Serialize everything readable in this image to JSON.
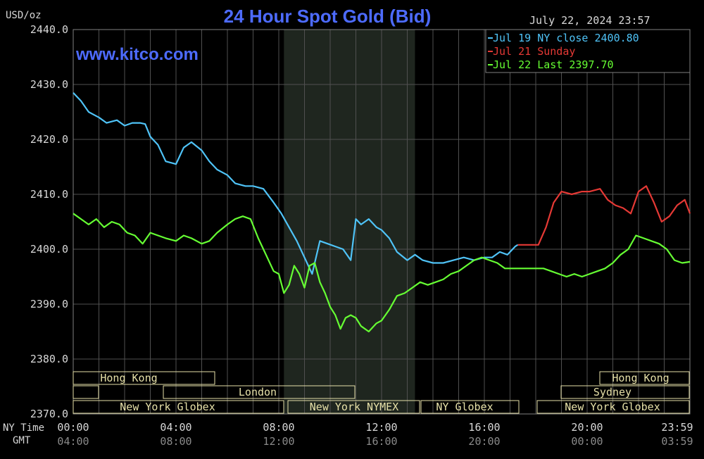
{
  "header": {
    "unit_label": "USD/oz",
    "title": "24 Hour Spot Gold (Bid)",
    "datetime": "July 22, 2024 23:57",
    "watermark": "www.kitco.com"
  },
  "legend": [
    {
      "label": "Jul 19 NY close 2400.80",
      "color": "#4fc3f7"
    },
    {
      "label": "Jul 21 Sunday",
      "color": "#e53935"
    },
    {
      "label": "Jul 22 Last 2397.70",
      "color": "#66ff33"
    }
  ],
  "axis_rows": {
    "ny_label": "NY Time",
    "gmt_label": "GMT",
    "ny_ticks": [
      "00:00",
      "04:00",
      "08:00",
      "12:00",
      "16:00",
      "20:00",
      "23:59"
    ],
    "gmt_ticks": [
      "04:00",
      "08:00",
      "12:00",
      "16:00",
      "20:00",
      "00:00",
      "03:59"
    ]
  },
  "sessions": {
    "hong_kong_1": "Hong Kong",
    "london": "London",
    "ny_globex_1": "New York Globex",
    "ny_nymex": "New York NYMEX",
    "ny_globex_2": "NY Globex",
    "hong_kong_2": "Hong Kong",
    "sydney": "Sydney",
    "ny_globex_3": "New York Globex"
  },
  "colors": {
    "background": "#000000",
    "plot": "#000000",
    "grid": "#505050",
    "shade": "#1f261f",
    "axis_text": "#d8d8d8",
    "title": "#4d6bff",
    "session_box": "#e6e0a8"
  },
  "chart_data": {
    "type": "line",
    "title": "24 Hour Spot Gold (Bid)",
    "ylabel": "USD/oz",
    "xlabel": "NY Time",
    "x_unit": "hours (NY time)",
    "xlim": [
      0,
      24
    ],
    "ylim": [
      2370,
      2440
    ],
    "yticks": [
      "2440.0",
      "2430.0",
      "2420.0",
      "2410.0",
      "2400.0",
      "2390.0",
      "2380.0",
      "2370.0"
    ],
    "ytick_values": [
      2440,
      2430,
      2420,
      2410,
      2400,
      2390,
      2380,
      2370
    ],
    "grid": true,
    "legend_position": "top-right",
    "series": [
      {
        "name": "Jul 19 NY close 2400.80",
        "color": "#4fc3f7",
        "x": [
          0,
          0.3,
          0.6,
          1.0,
          1.3,
          1.7,
          2.0,
          2.3,
          2.6,
          2.8,
          3.0,
          3.3,
          3.6,
          4.0,
          4.3,
          4.6,
          5.0,
          5.3,
          5.6,
          6.0,
          6.3,
          6.7,
          7.0,
          7.4,
          7.8,
          8.1,
          8.4,
          8.7,
          9.0,
          9.3,
          9.6,
          9.9,
          10.2,
          10.5,
          10.8,
          11.0,
          11.2,
          11.5,
          11.8,
          12.0,
          12.3,
          12.6,
          13.0,
          13.3,
          13.6,
          14.0,
          14.4,
          14.8,
          15.2,
          15.6,
          16.0,
          16.3,
          16.6,
          16.9,
          17.2,
          17.3
        ],
        "values": [
          2428.5,
          2427.0,
          2425.0,
          2424.0,
          2423.0,
          2423.5,
          2422.5,
          2423.0,
          2423.0,
          2422.8,
          2420.5,
          2419.0,
          2416.0,
          2415.5,
          2418.5,
          2419.5,
          2418.0,
          2416.0,
          2414.5,
          2413.5,
          2412.0,
          2411.5,
          2411.5,
          2411.0,
          2408.5,
          2406.5,
          2404.0,
          2401.5,
          2398.5,
          2395.5,
          2401.5,
          2401.0,
          2400.5,
          2400.0,
          2398.0,
          2405.5,
          2404.5,
          2405.5,
          2404.0,
          2403.5,
          2402.0,
          2399.5,
          2398.0,
          2399.0,
          2398.0,
          2397.5,
          2397.5,
          2398.0,
          2398.5,
          2398.0,
          2398.5,
          2398.5,
          2399.5,
          2399.0,
          2400.5,
          2400.8
        ]
      },
      {
        "name": "Jul 21 Sunday",
        "color": "#e53935",
        "x": [
          17.3,
          17.7,
          18.1,
          18.4,
          18.7,
          19.0,
          19.4,
          19.8,
          20.1,
          20.5,
          20.8,
          21.1,
          21.4,
          21.7,
          22.0,
          22.3,
          22.6,
          22.9,
          23.2,
          23.5,
          23.8,
          24.0
        ],
        "values": [
          2400.8,
          2400.8,
          2400.8,
          2404.0,
          2408.5,
          2410.5,
          2410.0,
          2410.5,
          2410.5,
          2411.0,
          2409.0,
          2408.0,
          2407.5,
          2406.5,
          2410.5,
          2411.5,
          2408.5,
          2405.0,
          2406.0,
          2408.0,
          2409.0,
          2406.5
        ]
      },
      {
        "name": "Jul 22 Last 2397.70",
        "color": "#66ff33",
        "x": [
          0,
          0.3,
          0.6,
          0.9,
          1.2,
          1.5,
          1.8,
          2.1,
          2.4,
          2.7,
          3.0,
          3.3,
          3.6,
          4.0,
          4.3,
          4.6,
          5.0,
          5.3,
          5.6,
          6.0,
          6.3,
          6.6,
          6.9,
          7.2,
          7.5,
          7.8,
          8.0,
          8.2,
          8.4,
          8.6,
          8.8,
          9.0,
          9.2,
          9.4,
          9.6,
          9.8,
          10.0,
          10.2,
          10.4,
          10.6,
          10.8,
          11.0,
          11.2,
          11.5,
          11.8,
          12.0,
          12.3,
          12.6,
          12.9,
          13.2,
          13.5,
          13.8,
          14.1,
          14.4,
          14.7,
          15.0,
          15.3,
          15.6,
          15.9,
          16.2,
          16.5,
          16.8,
          17.1,
          17.4,
          17.7,
          18.0,
          18.3,
          18.6,
          18.9,
          19.2,
          19.5,
          19.8,
          20.1,
          20.4,
          20.7,
          21.0,
          21.3,
          21.6,
          21.9,
          22.2,
          22.5,
          22.8,
          23.1,
          23.4,
          23.7,
          24.0
        ],
        "values": [
          2406.5,
          2405.5,
          2404.5,
          2405.5,
          2404.0,
          2405.0,
          2404.5,
          2403.0,
          2402.5,
          2401.0,
          2403.0,
          2402.5,
          2402.0,
          2401.5,
          2402.5,
          2402.0,
          2401.0,
          2401.5,
          2403.0,
          2404.5,
          2405.5,
          2406.0,
          2405.5,
          2402.0,
          2399.0,
          2396.0,
          2395.5,
          2392.0,
          2393.5,
          2397.0,
          2395.5,
          2393.0,
          2397.0,
          2397.5,
          2394.0,
          2392.0,
          2389.5,
          2388.0,
          2385.5,
          2387.5,
          2388.0,
          2387.5,
          2386.0,
          2385.0,
          2386.5,
          2387.0,
          2389.0,
          2391.5,
          2392.0,
          2393.0,
          2394.0,
          2393.5,
          2394.0,
          2394.5,
          2395.5,
          2396.0,
          2397.0,
          2398.0,
          2398.5,
          2398.0,
          2397.5,
          2396.5,
          2396.5,
          2396.5,
          2396.5,
          2396.5,
          2396.5,
          2396.0,
          2395.5,
          2395.0,
          2395.5,
          2395.0,
          2395.5,
          2396.0,
          2396.5,
          2397.5,
          2399.0,
          2400.0,
          2402.5,
          2402.0,
          2401.5,
          2401.0,
          2400.0,
          2398.0,
          2397.5,
          2397.7
        ]
      }
    ]
  }
}
